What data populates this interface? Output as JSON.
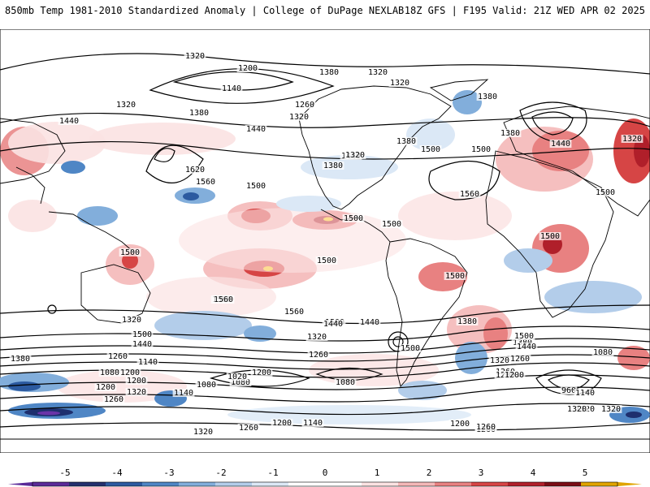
{
  "header": {
    "title": "850mb Temp 1981-2010 Standardized Anomaly | College of DuPage NEXLAB",
    "subtitle": "18Z GFS | F195 Valid: 21Z WED APR 02 2025"
  },
  "colors": {
    "ocean": "#ffffff",
    "land_outline": "#000000",
    "contour": "#000000",
    "warm": [
      "#fbe2e2",
      "#f4b8b8",
      "#e88181",
      "#d64545",
      "#b01f2a",
      "#7a0d16",
      "#ffd21a"
    ],
    "cold": [
      "#dbe8f6",
      "#b3cdea",
      "#82aedb",
      "#4f86c5",
      "#2c5aa0",
      "#1e2f6e",
      "#6a34a8"
    ]
  },
  "contour_labels": [
    "1320",
    "1200",
    "1140",
    "1320",
    "1320",
    "1380",
    "1380",
    "1320",
    "1260",
    "1380",
    "1440",
    "1320",
    "1440",
    "1620",
    "1560",
    "1500",
    "1500",
    "1380",
    "1440",
    "1500",
    "1380",
    "1440",
    "1320",
    "1380",
    "1320",
    "1560",
    "1500",
    "1500",
    "1500",
    "1500",
    "1500",
    "1500",
    "1500",
    "1560",
    "1560",
    "1500",
    "1440",
    "1500",
    "1440",
    "1380",
    "1320",
    "1260",
    "1200",
    "1080",
    "1200",
    "1260",
    "1140",
    "1200",
    "1080",
    "1320",
    "1260",
    "1140",
    "1080",
    "1080",
    "1200",
    "1020",
    "1320",
    "1260",
    "1380",
    "1200",
    "1260",
    "1320",
    "1380",
    "1500",
    "1440",
    "1560",
    "1500",
    "1440",
    "1320",
    "1260",
    "1200",
    "1080",
    "960",
    "1140",
    "1320",
    "1320",
    "1260",
    "1200",
    "1140",
    "1200",
    "1260",
    "1320"
  ],
  "colorbar": {
    "ticks": [
      "-5",
      "-4",
      "-3",
      "-2",
      "-1",
      "0",
      "1",
      "2",
      "3",
      "4",
      "5"
    ],
    "colors": [
      "#5a2a98",
      "#23306e",
      "#2c5aa0",
      "#4f86c5",
      "#82aedb",
      "#b3cdea",
      "#dbe8f6",
      "#ffffff",
      "#ffffff",
      "#fbe2e2",
      "#f4b8b8",
      "#e88181",
      "#d64545",
      "#b01f2a",
      "#7a0d16",
      "#e0a400"
    ]
  }
}
